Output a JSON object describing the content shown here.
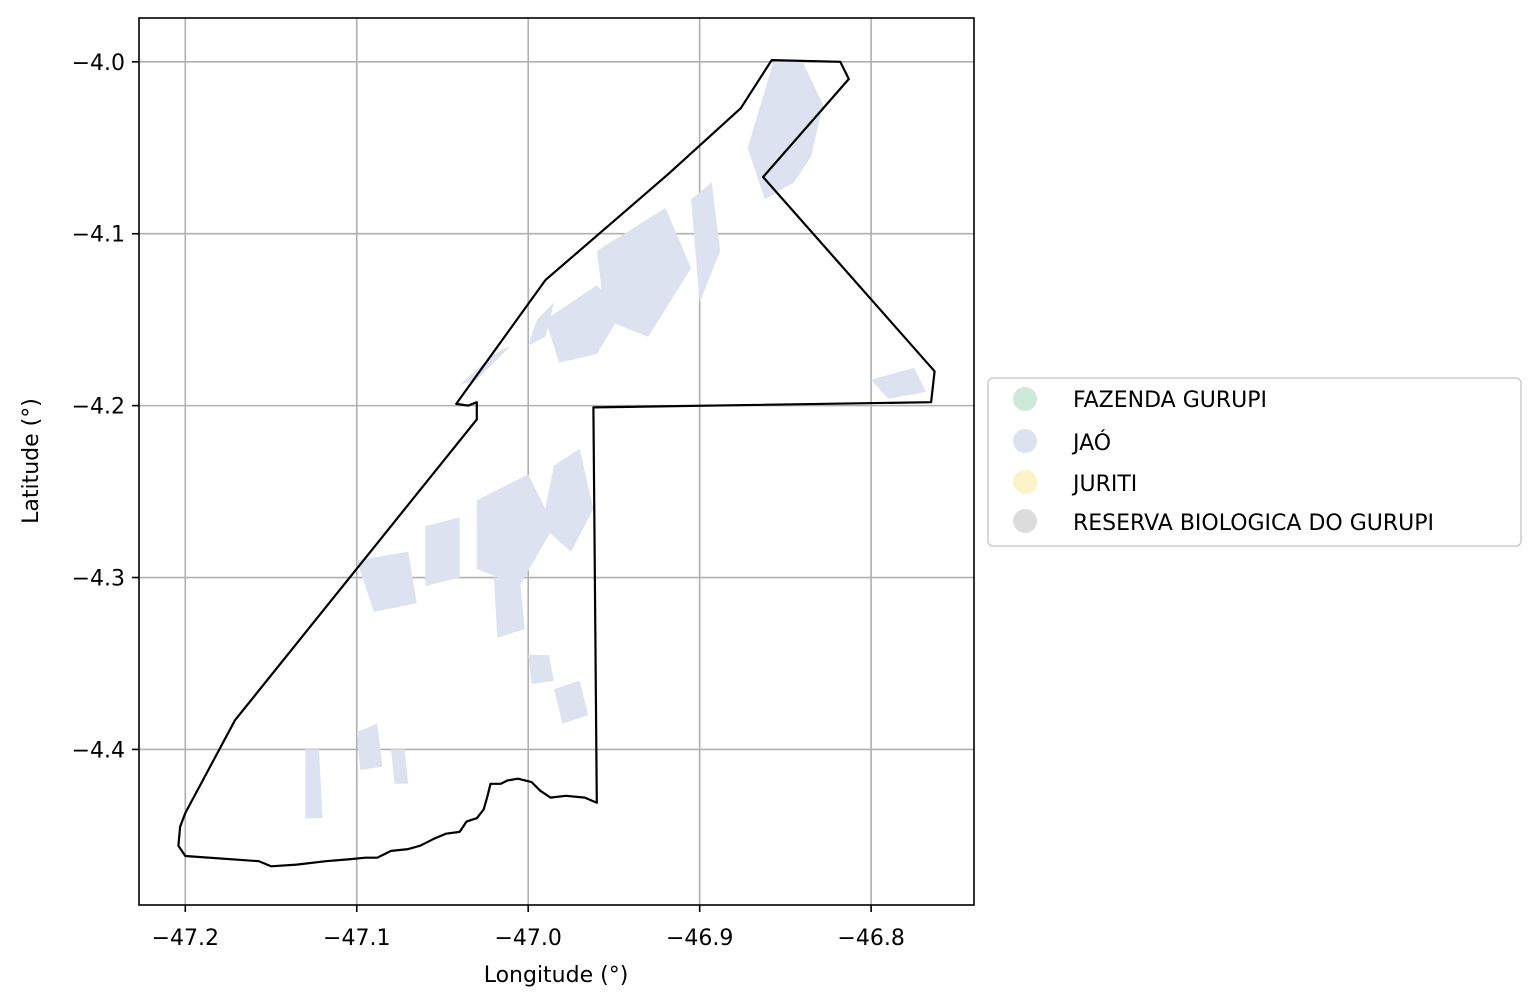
{
  "axes": {
    "xlabel": "Longitude (°)",
    "ylabel": "Latitude (°)",
    "xlim": [
      -47.227,
      -46.74
    ],
    "ylim": [
      -4.4905,
      -3.9745
    ],
    "xticks": [
      {
        "value": -47.2,
        "label": "−47.2"
      },
      {
        "value": -47.1,
        "label": "−47.1"
      },
      {
        "value": -47.0,
        "label": "−47.0"
      },
      {
        "value": -46.9,
        "label": "−46.9"
      },
      {
        "value": -46.8,
        "label": "−46.8"
      }
    ],
    "yticks": [
      {
        "value": -4.0,
        "label": "−4.0"
      },
      {
        "value": -4.1,
        "label": "−4.1"
      },
      {
        "value": -4.2,
        "label": "−4.2"
      },
      {
        "value": -4.3,
        "label": "−4.3"
      },
      {
        "value": -4.4,
        "label": "−4.4"
      }
    ],
    "grid": true
  },
  "legend": {
    "placement": "right-outside",
    "items": [
      {
        "label": "FAZENDA GURUPI",
        "color": "#cde9d9"
      },
      {
        "label": "JAÓ",
        "color": "#dde2f0"
      },
      {
        "label": "JURITI",
        "color": "#fdf3c8"
      },
      {
        "label": "RESERVA BIOLOGICA DO GURUPI",
        "color": "#dcdcdc"
      }
    ]
  },
  "colors": {
    "boundary": "#000000",
    "grid": "#b0b0b0",
    "fill": "#dde2f0"
  },
  "boundary": [
    [
      -46.858,
      -3.999
    ],
    [
      -46.818,
      -4.0
    ],
    [
      -46.813,
      -4.01
    ],
    [
      -46.863,
      -4.067
    ],
    [
      -46.763,
      -4.18
    ],
    [
      -46.765,
      -4.198
    ],
    [
      -46.962,
      -4.201
    ],
    [
      -46.96,
      -4.431
    ],
    [
      -46.967,
      -4.428
    ],
    [
      -46.978,
      -4.427
    ],
    [
      -46.987,
      -4.428
    ],
    [
      -46.993,
      -4.424
    ],
    [
      -46.998,
      -4.419
    ],
    [
      -47.006,
      -4.417
    ],
    [
      -47.012,
      -4.418
    ],
    [
      -47.016,
      -4.42
    ],
    [
      -47.022,
      -4.42
    ],
    [
      -47.024,
      -4.428
    ],
    [
      -47.026,
      -4.435
    ],
    [
      -47.03,
      -4.44
    ],
    [
      -47.036,
      -4.442
    ],
    [
      -47.04,
      -4.448
    ],
    [
      -47.048,
      -4.449
    ],
    [
      -47.055,
      -4.452
    ],
    [
      -47.063,
      -4.456
    ],
    [
      -47.07,
      -4.458
    ],
    [
      -47.08,
      -4.459
    ],
    [
      -47.088,
      -4.463
    ],
    [
      -47.095,
      -4.463
    ],
    [
      -47.105,
      -4.464
    ],
    [
      -47.118,
      -4.465
    ],
    [
      -47.135,
      -4.467
    ],
    [
      -47.15,
      -4.468
    ],
    [
      -47.157,
      -4.465
    ],
    [
      -47.2,
      -4.462
    ],
    [
      -47.204,
      -4.456
    ],
    [
      -47.203,
      -4.445
    ],
    [
      -47.2,
      -4.437
    ],
    [
      -47.171,
      -4.383
    ],
    [
      -47.03,
      -4.208
    ],
    [
      -47.03,
      -4.198
    ],
    [
      -47.035,
      -4.2
    ],
    [
      -47.042,
      -4.199
    ],
    [
      -46.99,
      -4.127
    ],
    [
      -46.918,
      -4.065
    ],
    [
      -46.876,
      -4.027
    ],
    [
      -46.858,
      -3.999
    ]
  ],
  "jao_patches": [
    [
      [
        -46.857,
        -4.0
      ],
      [
        -46.84,
        -4.0
      ],
      [
        -46.828,
        -4.025
      ],
      [
        -46.835,
        -4.055
      ],
      [
        -46.845,
        -4.07
      ],
      [
        -46.862,
        -4.08
      ],
      [
        -46.872,
        -4.05
      ]
    ],
    [
      [
        -46.96,
        -4.11
      ],
      [
        -46.92,
        -4.085
      ],
      [
        -46.905,
        -4.12
      ],
      [
        -46.93,
        -4.16
      ],
      [
        -46.955,
        -4.15
      ]
    ],
    [
      [
        -46.905,
        -4.08
      ],
      [
        -46.893,
        -4.07
      ],
      [
        -46.888,
        -4.11
      ],
      [
        -46.9,
        -4.14
      ]
    ],
    [
      [
        -46.96,
        -4.13
      ],
      [
        -46.945,
        -4.145
      ],
      [
        -46.96,
        -4.17
      ],
      [
        -46.982,
        -4.175
      ],
      [
        -46.99,
        -4.15
      ]
    ],
    [
      [
        -46.985,
        -4.14
      ],
      [
        -46.995,
        -4.15
      ],
      [
        -47.0,
        -4.165
      ],
      [
        -46.99,
        -4.16
      ]
    ],
    [
      [
        -47.01,
        -4.165
      ],
      [
        -47.03,
        -4.185
      ],
      [
        -47.04,
        -4.188
      ],
      [
        -47.02,
        -4.17
      ]
    ],
    [
      [
        -46.8,
        -4.185
      ],
      [
        -46.775,
        -4.178
      ],
      [
        -46.768,
        -4.192
      ],
      [
        -46.79,
        -4.196
      ]
    ],
    [
      [
        -46.985,
        -4.235
      ],
      [
        -46.97,
        -4.225
      ],
      [
        -46.962,
        -4.26
      ],
      [
        -46.975,
        -4.285
      ],
      [
        -46.992,
        -4.27
      ]
    ],
    [
      [
        -47.03,
        -4.255
      ],
      [
        -47.0,
        -4.24
      ],
      [
        -46.985,
        -4.27
      ],
      [
        -47.005,
        -4.305
      ],
      [
        -47.03,
        -4.295
      ]
    ],
    [
      [
        -47.06,
        -4.27
      ],
      [
        -47.04,
        -4.265
      ],
      [
        -47.04,
        -4.3
      ],
      [
        -47.06,
        -4.305
      ]
    ],
    [
      [
        -47.1,
        -4.29
      ],
      [
        -47.07,
        -4.285
      ],
      [
        -47.065,
        -4.315
      ],
      [
        -47.09,
        -4.32
      ]
    ],
    [
      [
        -47.02,
        -4.3
      ],
      [
        -47.005,
        -4.3
      ],
      [
        -47.002,
        -4.33
      ],
      [
        -47.018,
        -4.335
      ]
    ],
    [
      [
        -47.0,
        -4.345
      ],
      [
        -46.988,
        -4.345
      ],
      [
        -46.985,
        -4.36
      ],
      [
        -46.998,
        -4.362
      ]
    ],
    [
      [
        -46.985,
        -4.365
      ],
      [
        -46.97,
        -4.36
      ],
      [
        -46.965,
        -4.38
      ],
      [
        -46.98,
        -4.385
      ]
    ],
    [
      [
        -47.13,
        -4.4
      ],
      [
        -47.122,
        -4.4
      ],
      [
        -47.12,
        -4.44
      ],
      [
        -47.13,
        -4.44
      ]
    ],
    [
      [
        -47.1,
        -4.39
      ],
      [
        -47.088,
        -4.385
      ],
      [
        -47.085,
        -4.41
      ],
      [
        -47.098,
        -4.412
      ]
    ],
    [
      [
        -47.08,
        -4.4
      ],
      [
        -47.072,
        -4.4
      ],
      [
        -47.07,
        -4.42
      ],
      [
        -47.078,
        -4.42
      ]
    ]
  ]
}
